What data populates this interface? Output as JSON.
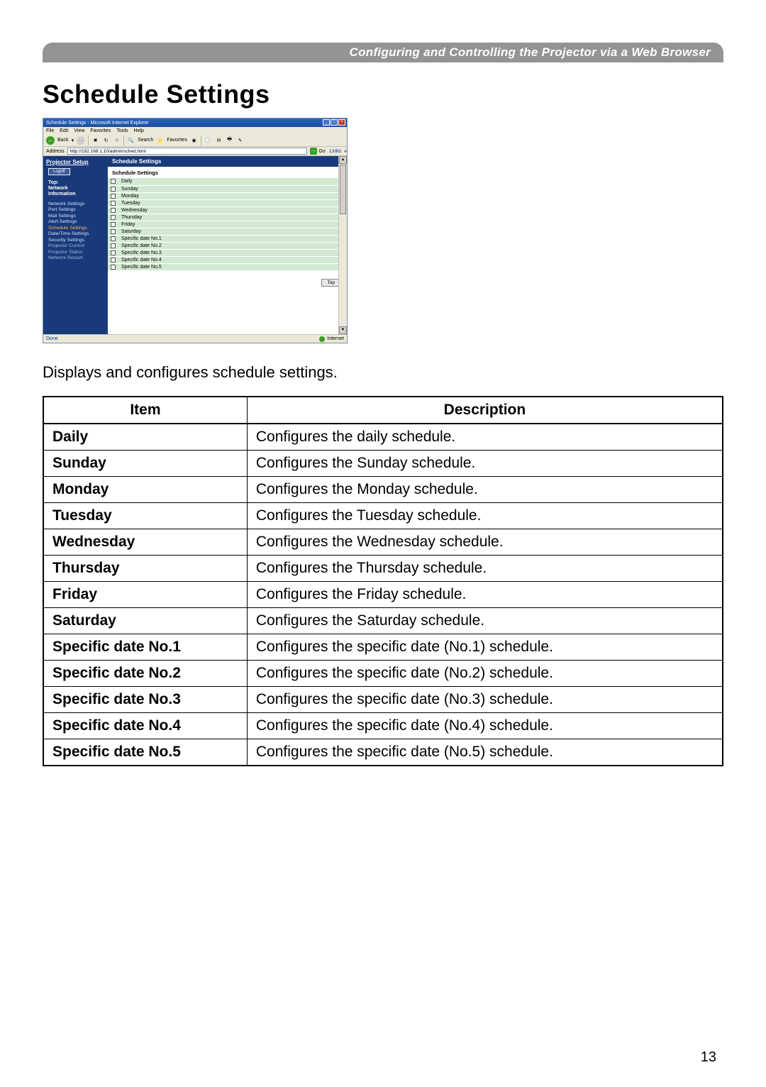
{
  "header_bar": "Configuring and Controlling the Projector via a Web Browser",
  "main_title": "Schedule Settings",
  "description_line": "Displays and configures schedule settings.",
  "page_number": "13",
  "screenshot": {
    "titlebar": "Schedule Settings - Microsoft Internet Explorer",
    "menubar": [
      "File",
      "Edit",
      "View",
      "Favorites",
      "Tools",
      "Help"
    ],
    "toolbar": {
      "back": "Back",
      "search": "Search",
      "favorites": "Favorites"
    },
    "address_label": "Address",
    "address_value": "http://192.168.1.10/admin/sched.html",
    "go": "Go",
    "links": "Links",
    "sidebar_header": "Projector Setup",
    "logoff": "Logoff",
    "sidebar_groups": [
      "Top:",
      "Network",
      "Information"
    ],
    "sidebar_nav": [
      "Network Settings",
      "Port Settings",
      "Mail Settings",
      "Alert Settings",
      "Schedule Settings",
      "Date/Time Settings",
      "Security Settings",
      "Projector Control",
      "Projector Status",
      "Network Restart"
    ],
    "content_title": "Schedule Settings",
    "sub_title": "Schedule Settings",
    "schedule_items": [
      "Daily",
      "Sunday",
      "Monday",
      "Tuesday",
      "Wednesday",
      "Thursday",
      "Friday",
      "Saturday",
      "Specific date No.1",
      "Specific date No.2",
      "Specific date No.3",
      "Specific date No.4",
      "Specific date No.5"
    ],
    "top_button": "Top",
    "status_done": "Done",
    "status_internet": "Internet"
  },
  "table": {
    "headers": {
      "item": "Item",
      "description": "Description"
    },
    "rows": [
      {
        "item": "Daily",
        "desc": "Configures the daily schedule."
      },
      {
        "item": "Sunday",
        "desc": "Configures the Sunday schedule."
      },
      {
        "item": "Monday",
        "desc": "Configures the Monday schedule."
      },
      {
        "item": "Tuesday",
        "desc": "Configures the Tuesday schedule."
      },
      {
        "item": "Wednesday",
        "desc": "Configures the Wednesday schedule."
      },
      {
        "item": "Thursday",
        "desc": "Configures the Thursday schedule."
      },
      {
        "item": "Friday",
        "desc": "Configures the Friday schedule."
      },
      {
        "item": "Saturday",
        "desc": "Configures the Saturday schedule."
      },
      {
        "item": "Specific date No.1",
        "desc": "Configures the specific date (No.1) schedule."
      },
      {
        "item": "Specific date No.2",
        "desc": "Configures the specific date (No.2) schedule."
      },
      {
        "item": "Specific date No.3",
        "desc": "Configures the specific date (No.3) schedule."
      },
      {
        "item": "Specific date No.4",
        "desc": "Configures the specific date (No.4) schedule."
      },
      {
        "item": "Specific date No.5",
        "desc": "Configures the specific date (No.5) schedule."
      }
    ]
  },
  "colors": {
    "header_bar_bg": "#949494",
    "header_bar_text": "#ffffff",
    "ie_titlebar": "#1b4ea0",
    "ie_sidebar": "#193a7a",
    "sched_row_bg": "#d2ead2",
    "nav_active": "#ffb05a"
  }
}
